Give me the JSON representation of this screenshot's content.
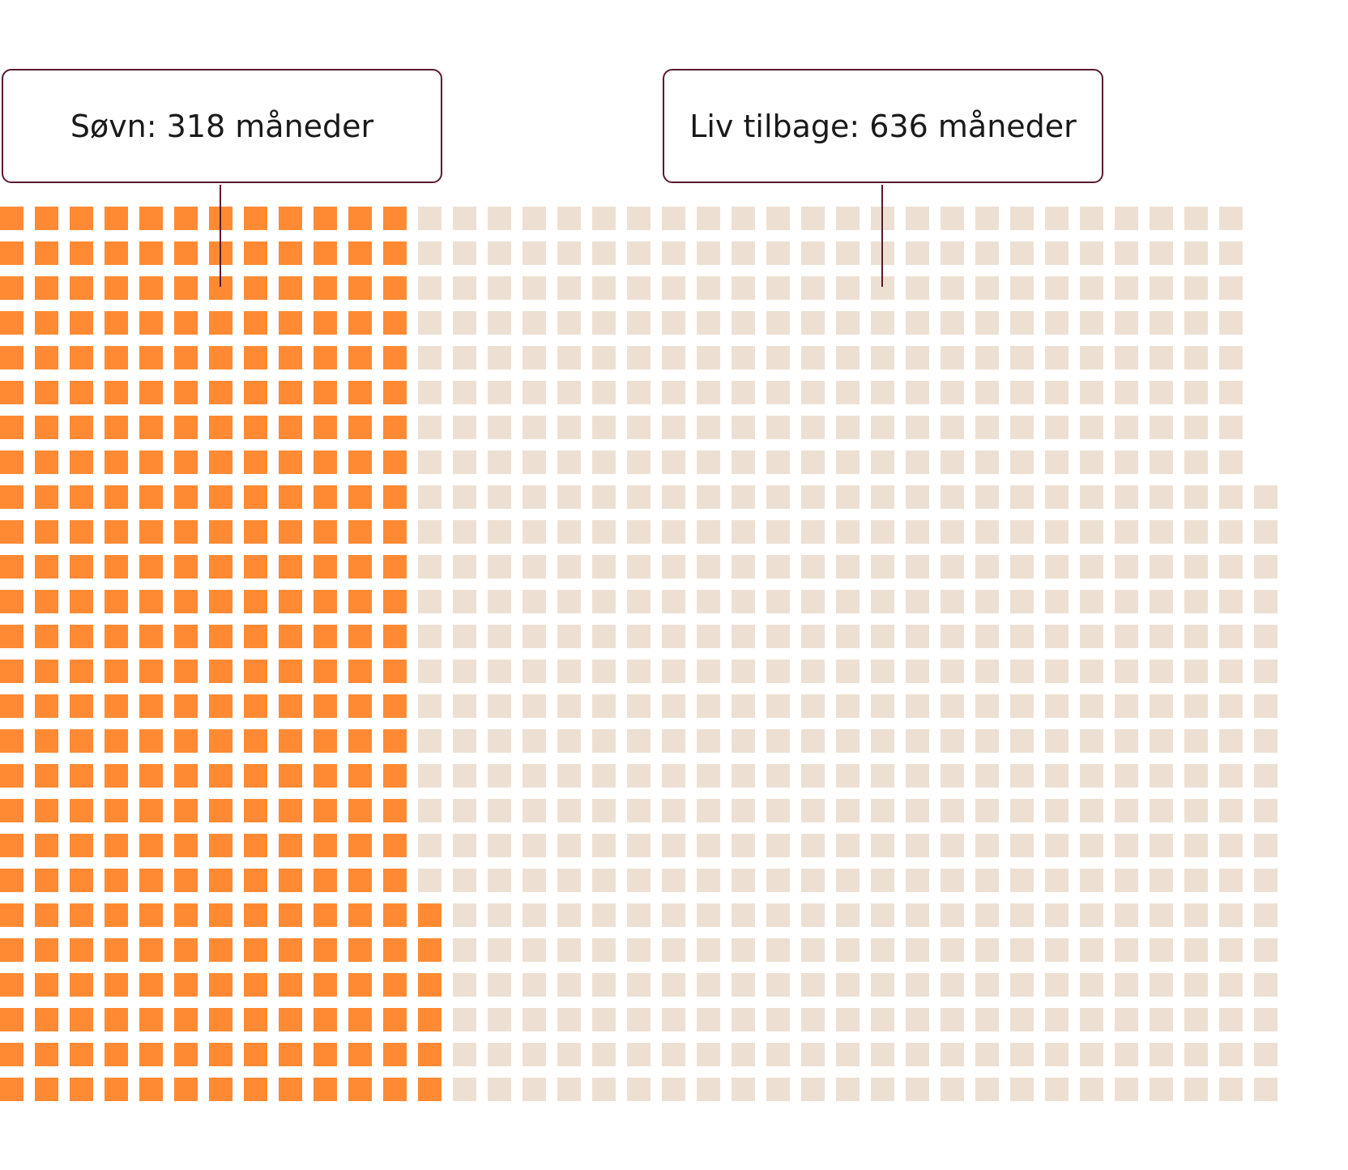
{
  "chart_data": {
    "type": "waffle",
    "unit": "måned",
    "columns": 38,
    "series": [
      {
        "name": "Søvn",
        "label": "Søvn: 318 måneder",
        "value": 318,
        "color": "#FF8A33"
      },
      {
        "name": "Liv tilbage",
        "label": "Liv tilbage: 636 måneder",
        "value": 636,
        "color": "#EDE0D3"
      }
    ]
  }
}
